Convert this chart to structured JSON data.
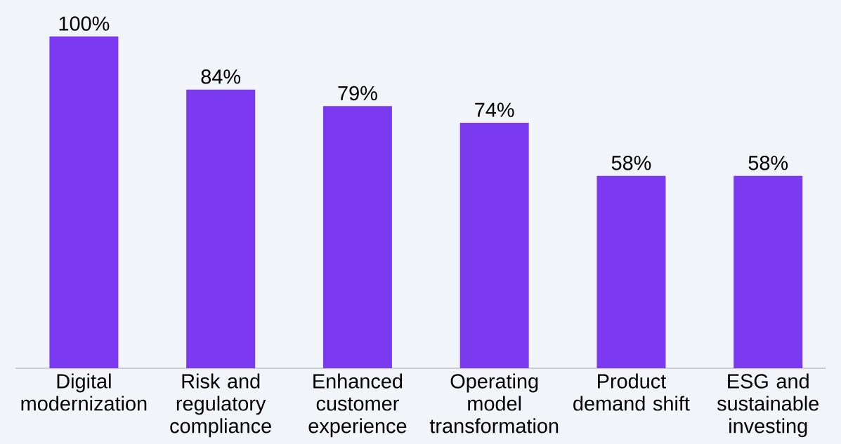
{
  "chart_data": {
    "type": "bar",
    "categories": [
      "Digital modernization",
      "Risk and regulatory compliance",
      "Enhanced customer experience",
      "Operating model transformation",
      "Product demand shift",
      "ESG and sustainable investing"
    ],
    "values": [
      100,
      84,
      79,
      74,
      58,
      58
    ],
    "value_labels": [
      "100%",
      "84%",
      "79%",
      "74%",
      "58%",
      "58%"
    ],
    "color": "#7b3aef"
  }
}
